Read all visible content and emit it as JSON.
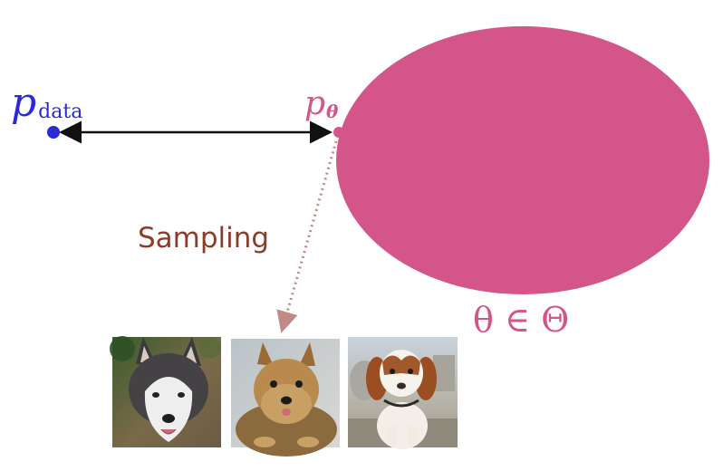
{
  "labels": {
    "p_data": {
      "main": "p",
      "subscript": "data"
    },
    "p_theta": {
      "main": "p",
      "subscript": "θ"
    },
    "sampling": "Sampling",
    "theta_in_Theta": "θ ∈ Θ"
  },
  "colors": {
    "data_blue": "#2b2bd6",
    "model_pink": "#d4558a",
    "sampling_brown": "#8b3d2b",
    "arrow_black": "#111111",
    "dotted_arrow": "#c08a86"
  },
  "images": [
    {
      "icon": "husky-dog-photo"
    },
    {
      "icon": "yorkshire-terrier-photo"
    },
    {
      "icon": "spaniel-puppy-photo"
    }
  ]
}
